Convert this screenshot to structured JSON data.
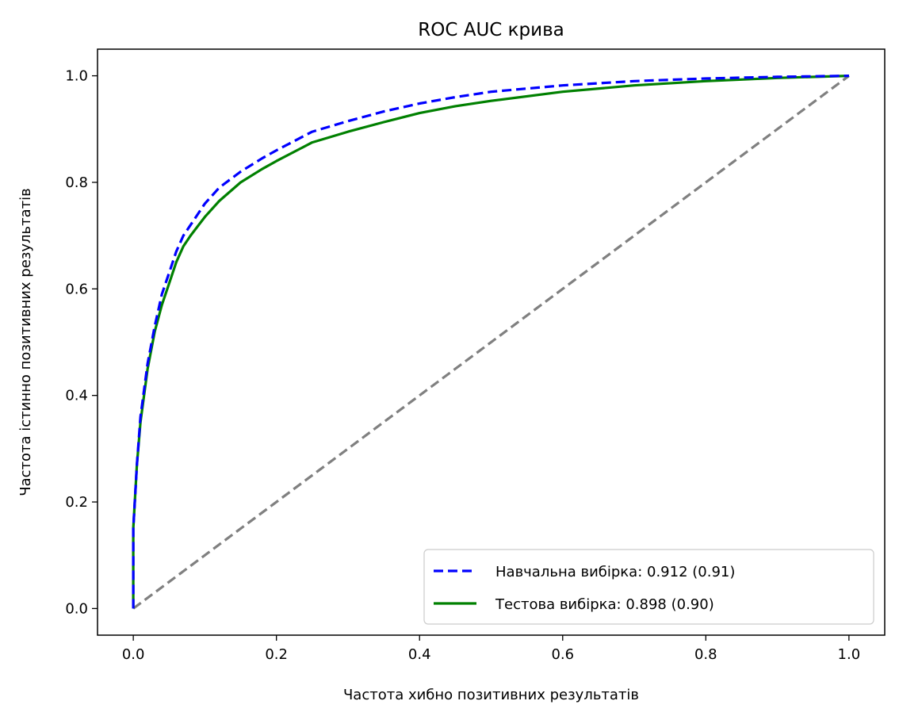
{
  "chart_data": {
    "type": "line",
    "title": "ROC AUC крива",
    "xlabel": "Частота хибно позитивних результатів",
    "ylabel": "Частота істинно позитивних результатів",
    "xlim": [
      -0.05,
      1.05
    ],
    "ylim": [
      -0.05,
      1.05
    ],
    "xticks": [
      "0.0",
      "0.2",
      "0.4",
      "0.6",
      "0.8",
      "1.0"
    ],
    "yticks": [
      "0.0",
      "0.2",
      "0.4",
      "0.6",
      "0.8",
      "1.0"
    ],
    "grid": false,
    "legend_position": "lower-right",
    "series": [
      {
        "name": "Навчальна вибірка: 0.912 (0.91)",
        "color": "#0000ff",
        "style": "dashed",
        "x": [
          0.0,
          0.0,
          0.005,
          0.01,
          0.02,
          0.03,
          0.04,
          0.05,
          0.06,
          0.07,
          0.08,
          0.1,
          0.12,
          0.15,
          0.18,
          0.2,
          0.25,
          0.3,
          0.35,
          0.4,
          0.45,
          0.5,
          0.6,
          0.7,
          0.8,
          0.9,
          1.0
        ],
        "y": [
          0.0,
          0.15,
          0.27,
          0.36,
          0.46,
          0.53,
          0.59,
          0.63,
          0.67,
          0.7,
          0.72,
          0.76,
          0.79,
          0.82,
          0.845,
          0.86,
          0.895,
          0.915,
          0.933,
          0.948,
          0.96,
          0.97,
          0.982,
          0.99,
          0.995,
          0.998,
          1.0
        ]
      },
      {
        "name": "Тестова вибірка: 0.898 (0.90)",
        "color": "#008000",
        "style": "solid",
        "x": [
          0.0,
          0.0,
          0.005,
          0.01,
          0.02,
          0.03,
          0.04,
          0.05,
          0.06,
          0.07,
          0.08,
          0.1,
          0.12,
          0.15,
          0.18,
          0.2,
          0.25,
          0.3,
          0.35,
          0.4,
          0.45,
          0.5,
          0.6,
          0.7,
          0.8,
          0.9,
          1.0
        ],
        "y": [
          0.0,
          0.15,
          0.27,
          0.35,
          0.45,
          0.52,
          0.57,
          0.61,
          0.65,
          0.68,
          0.7,
          0.735,
          0.765,
          0.8,
          0.825,
          0.84,
          0.875,
          0.895,
          0.913,
          0.93,
          0.943,
          0.953,
          0.97,
          0.982,
          0.99,
          0.996,
          1.0
        ]
      },
      {
        "name": "",
        "color": "#808080",
        "style": "dashed",
        "x": [
          0.0,
          1.0
        ],
        "y": [
          0.0,
          1.0
        ]
      }
    ]
  }
}
